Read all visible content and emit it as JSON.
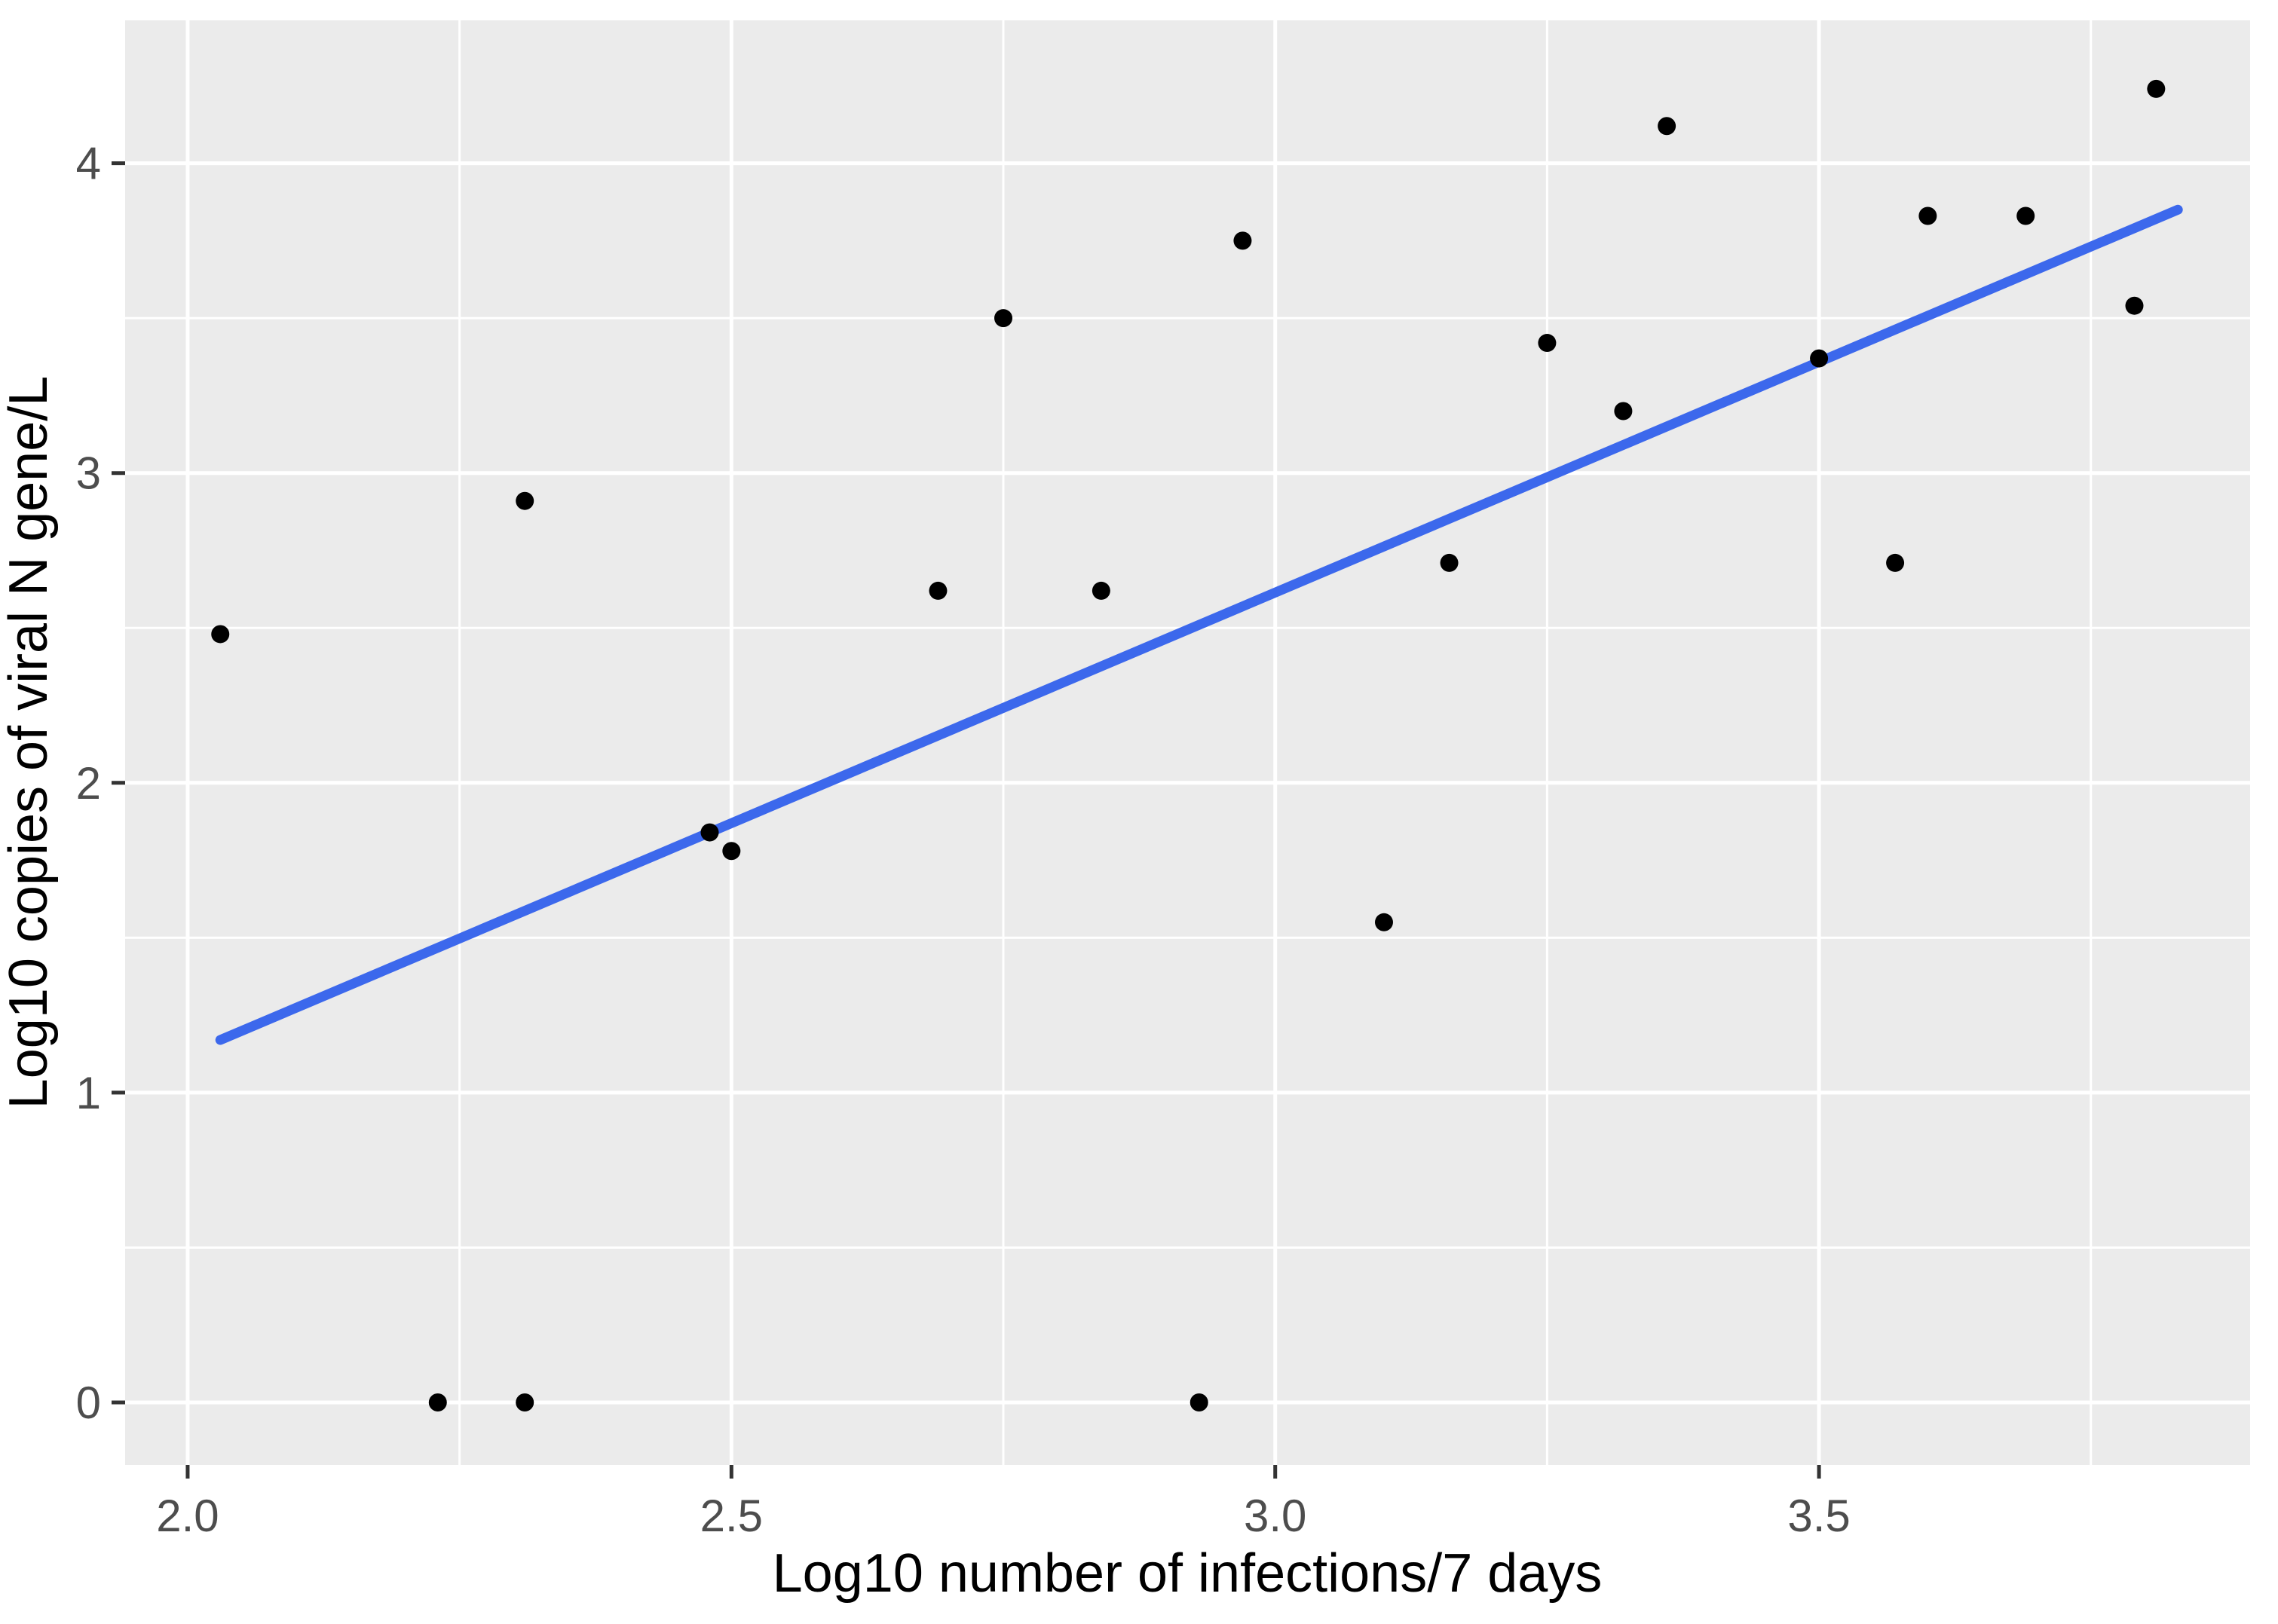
{
  "figure": {
    "background": "#FFFFFF",
    "panel_background": "#EBEBEB",
    "grid_color": "#FFFFFF",
    "tick_mark_color": "#333333",
    "tick_label_color": "#4D4D4D",
    "axis_title_color": "#000000",
    "point_color": "#000000",
    "smooth_line_color": "#3C68EC"
  },
  "chart_data": {
    "type": "scatter",
    "title": "",
    "xlabel": "Log10 number of infections/7 days",
    "ylabel": "Log10 copies of viral N gene/L",
    "xlim": [
      1.9425,
      3.8964
    ],
    "ylim": [
      -0.2019,
      4.4612
    ],
    "grid": true,
    "legend_position": "none",
    "x_major_ticks": [
      2.0,
      2.5,
      3.0,
      3.5
    ],
    "x_tick_labels": [
      "2.0",
      "2.5",
      "3.0",
      "3.5"
    ],
    "x_minor_ticks": [
      2.25,
      2.75,
      3.25,
      3.75
    ],
    "y_major_ticks": [
      0,
      1,
      2,
      3,
      4
    ],
    "y_tick_labels": [
      "0",
      "1",
      "2",
      "3",
      "4"
    ],
    "y_minor_ticks": [
      0.5,
      1.5,
      2.5,
      3.5
    ],
    "points": [
      [
        2.03,
        2.48
      ],
      [
        2.23,
        0.0
      ],
      [
        2.31,
        0.0
      ],
      [
        2.31,
        2.91
      ],
      [
        2.48,
        1.84
      ],
      [
        2.5,
        1.78
      ],
      [
        2.69,
        2.62
      ],
      [
        2.75,
        3.5
      ],
      [
        2.84,
        2.62
      ],
      [
        2.93,
        0.0
      ],
      [
        2.97,
        3.75
      ],
      [
        3.1,
        1.55
      ],
      [
        3.16,
        2.71
      ],
      [
        3.25,
        3.42
      ],
      [
        3.32,
        3.2
      ],
      [
        3.36,
        4.12
      ],
      [
        3.5,
        3.37
      ],
      [
        3.57,
        2.71
      ],
      [
        3.6,
        3.83
      ],
      [
        3.69,
        3.83
      ],
      [
        3.79,
        3.54
      ],
      [
        3.81,
        4.24
      ]
    ],
    "regression_line": {
      "x1": 2.03,
      "y1": 1.17,
      "x2": 3.83,
      "y2": 3.85
    }
  }
}
